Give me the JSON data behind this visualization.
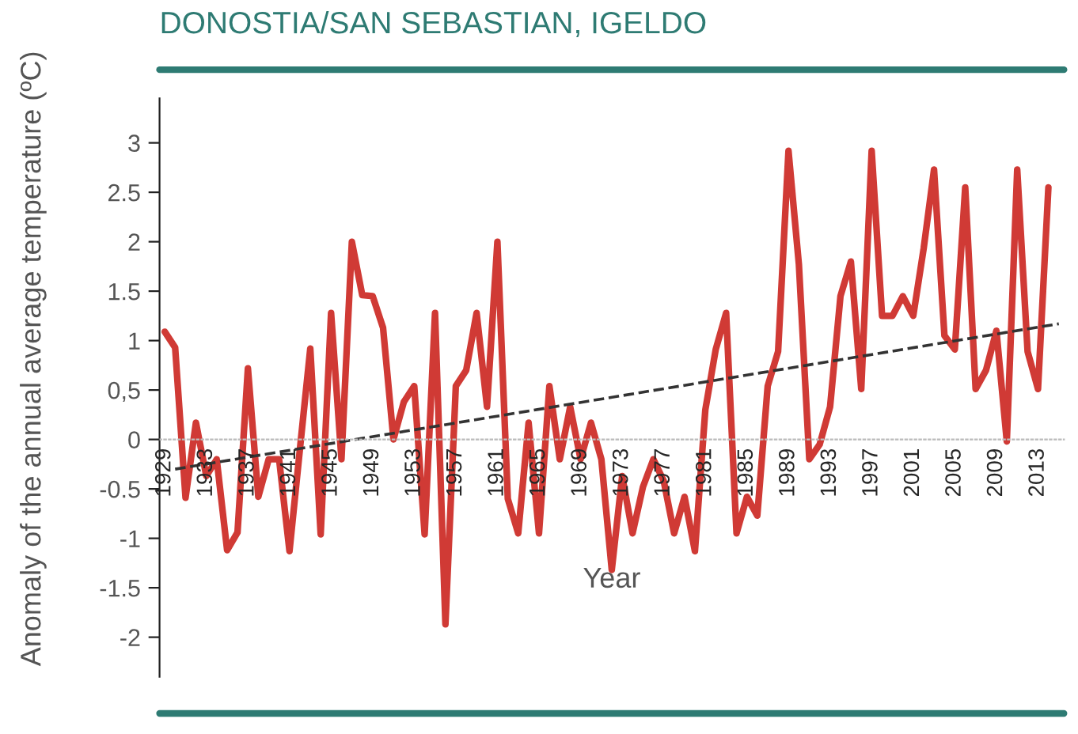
{
  "chart_data": {
    "type": "line",
    "title": "DONOSTIA/SAN SEBASTIAN, IGELDO",
    "xlabel": "Year",
    "ylabel": "Anomaly of the annual average temperature (ºC)",
    "x": [
      1929,
      1930,
      1931,
      1932,
      1933,
      1934,
      1935,
      1936,
      1937,
      1938,
      1939,
      1940,
      1941,
      1942,
      1943,
      1944,
      1945,
      1946,
      1947,
      1948,
      1949,
      1950,
      1951,
      1952,
      1953,
      1954,
      1955,
      1956,
      1957,
      1958,
      1959,
      1960,
      1961,
      1962,
      1963,
      1964,
      1965,
      1966,
      1967,
      1968,
      1969,
      1970,
      1971,
      1972,
      1973,
      1974,
      1975,
      1976,
      1977,
      1978,
      1979,
      1980,
      1981,
      1982,
      1983,
      1984,
      1985,
      1986,
      1987,
      1988,
      1989,
      1990,
      1991,
      1992,
      1993,
      1994,
      1995,
      1996,
      1997,
      1998,
      1999,
      2000,
      2001,
      2002,
      2003,
      2004,
      2005,
      2006,
      2007,
      2008,
      2009,
      2010,
      2011,
      2012,
      2013,
      2014
    ],
    "series": [
      {
        "color": "#d03a35",
        "values": [
          1.09,
          0.93,
          -0.59,
          0.17,
          -0.37,
          -0.2,
          -1.12,
          -0.94,
          0.72,
          -0.58,
          -0.2,
          -0.2,
          -1.13,
          -0.1,
          0.92,
          -0.96,
          1.28,
          -0.2,
          2.0,
          1.46,
          1.45,
          1.13,
          0.0,
          0.38,
          0.54,
          -0.96,
          1.28,
          -1.87,
          0.54,
          0.7,
          1.28,
          0.33,
          2.0,
          -0.6,
          -0.95,
          0.17,
          -0.95,
          0.54,
          -0.2,
          0.33,
          -0.2,
          0.17,
          -0.2,
          -1.32,
          -0.37,
          -0.95,
          -0.48,
          -0.2,
          -0.42,
          -0.95,
          -0.58,
          -1.13,
          0.3,
          0.91,
          1.28,
          -0.95,
          -0.58,
          -0.77,
          0.54,
          0.89,
          2.92,
          1.77,
          -0.2,
          -0.05,
          0.33,
          1.45,
          1.8,
          0.51,
          2.92,
          1.25,
          1.25,
          1.45,
          1.25,
          1.93,
          2.73,
          1.05,
          0.91,
          2.55,
          0.51,
          0.7,
          1.1,
          -0.02,
          2.73,
          0.89,
          0.51,
          2.55
        ]
      },
      {
        "type": "line",
        "color": "#333333",
        "line_style": "dashed",
        "x": [
          1930,
          2015
        ],
        "values": [
          -0.3,
          1.17
        ]
      }
    ],
    "xlim": [
      1928.5,
      2015.5
    ],
    "xticks": [
      1929,
      1933,
      1937,
      1941,
      1945,
      1949,
      1953,
      1957,
      1961,
      1965,
      1969,
      1973,
      1977,
      1981,
      1985,
      1989,
      1993,
      1997,
      2001,
      2005,
      2009,
      2013
    ],
    "ylim": [
      -2.4,
      3.45
    ],
    "yticks": [
      -2,
      -1.5,
      -1,
      -0.5,
      0,
      {
        "value": 0.5,
        "label": "0,5"
      },
      1,
      1.5,
      2,
      2.5,
      3
    ],
    "legend": false
  }
}
